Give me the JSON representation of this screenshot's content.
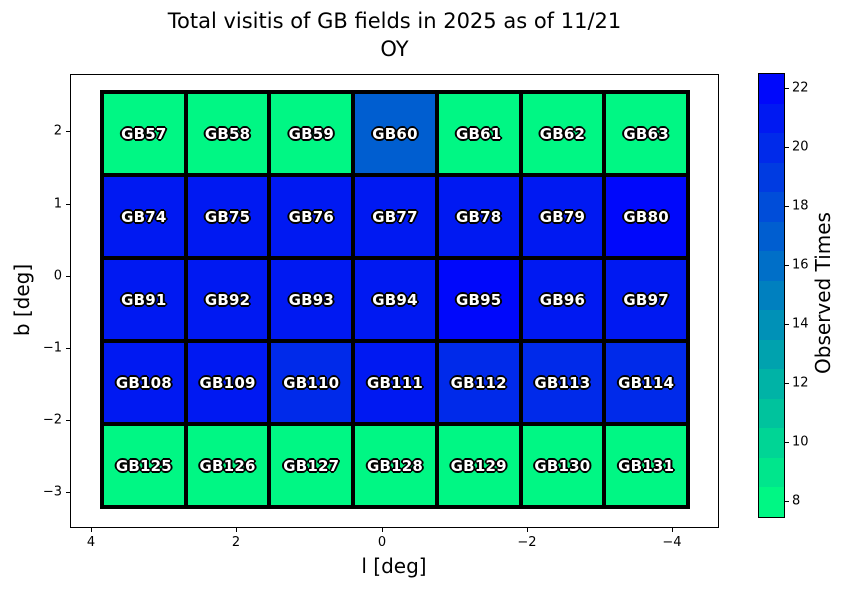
{
  "title_line1": "Total visitis of GB fields in 2025 as of 11/21",
  "title_line2": "OY",
  "chart_data": {
    "type": "heatmap",
    "title": "Total visitis of GB fields in 2025 as of 11/21 OY",
    "xlabel": "l [deg]",
    "ylabel": "b [deg]",
    "colorbar_label": "Observed Times",
    "colormap": "winter_r",
    "colormap_low_color": "#00ff80",
    "colormap_high_color": "#0000ff",
    "vmin": 7.5,
    "vmax": 22.5,
    "grid_columns": 7,
    "grid_rows": 5,
    "x_tick_labels": [
      "4",
      "2",
      "0",
      "−2",
      "−4"
    ],
    "y_tick_labels": [
      "2",
      "1",
      "0",
      "−1",
      "−2",
      "−3"
    ],
    "x_axis_inverted": true,
    "colorbar_ticks": [
      8,
      10,
      12,
      14,
      16,
      18,
      20,
      22
    ],
    "rows": [
      {
        "cells": [
          {
            "label": "GB57",
            "value": 8
          },
          {
            "label": "GB58",
            "value": 8
          },
          {
            "label": "GB59",
            "value": 8
          },
          {
            "label": "GB60",
            "value": 17
          },
          {
            "label": "GB61",
            "value": 8
          },
          {
            "label": "GB62",
            "value": 8
          },
          {
            "label": "GB63",
            "value": 8
          }
        ]
      },
      {
        "cells": [
          {
            "label": "GB74",
            "value": 21
          },
          {
            "label": "GB75",
            "value": 21
          },
          {
            "label": "GB76",
            "value": 21
          },
          {
            "label": "GB77",
            "value": 21
          },
          {
            "label": "GB78",
            "value": 21
          },
          {
            "label": "GB79",
            "value": 21
          },
          {
            "label": "GB80",
            "value": 22
          }
        ]
      },
      {
        "cells": [
          {
            "label": "GB91",
            "value": 21
          },
          {
            "label": "GB92",
            "value": 21
          },
          {
            "label": "GB93",
            "value": 21
          },
          {
            "label": "GB94",
            "value": 21
          },
          {
            "label": "GB95",
            "value": 22
          },
          {
            "label": "GB96",
            "value": 21
          },
          {
            "label": "GB97",
            "value": 21
          }
        ]
      },
      {
        "cells": [
          {
            "label": "GB108",
            "value": 21
          },
          {
            "label": "GB109",
            "value": 21
          },
          {
            "label": "GB110",
            "value": 20
          },
          {
            "label": "GB111",
            "value": 21
          },
          {
            "label": "GB112",
            "value": 20
          },
          {
            "label": "GB113",
            "value": 20
          },
          {
            "label": "GB114",
            "value": 20
          }
        ]
      },
      {
        "cells": [
          {
            "label": "GB125",
            "value": 8
          },
          {
            "label": "GB126",
            "value": 8
          },
          {
            "label": "GB127",
            "value": 8
          },
          {
            "label": "GB128",
            "value": 8
          },
          {
            "label": "GB129",
            "value": 8
          },
          {
            "label": "GB130",
            "value": 8
          },
          {
            "label": "GB131",
            "value": 8
          }
        ]
      }
    ]
  }
}
